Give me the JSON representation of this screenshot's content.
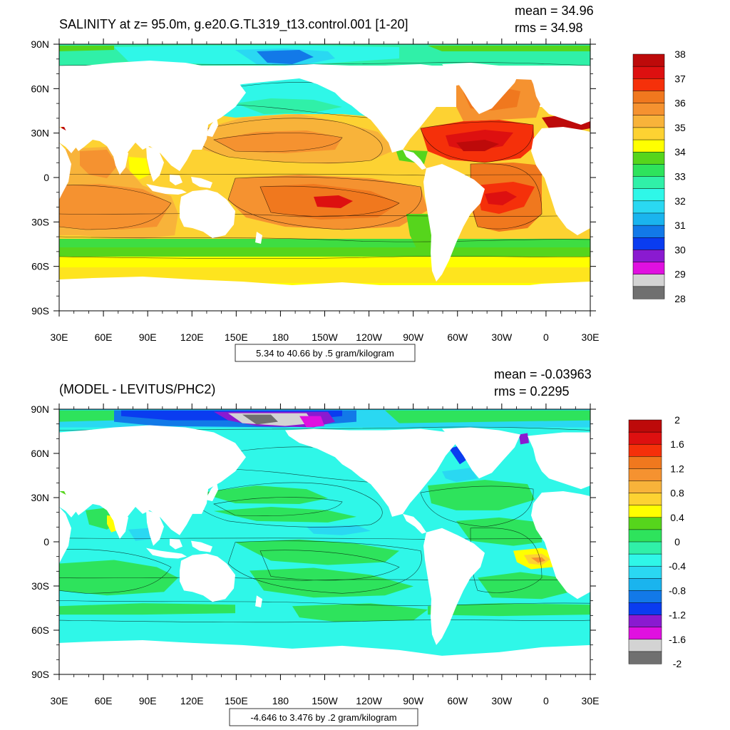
{
  "panels": [
    {
      "title": "SALINITY at z=  95.0m, g.e20.G.TL319_t13.control.001 [1-20]",
      "mean_text": "mean = 34.96",
      "rms_text": "rms = 34.98",
      "lat_labels": [
        "90N",
        "60N",
        "30N",
        "0",
        "30S",
        "60S",
        "90S"
      ],
      "lon_labels": [
        "30E",
        "60E",
        "90E",
        "120E",
        "150E",
        "180",
        "150W",
        "120W",
        "90W",
        "60W",
        "30W",
        "0",
        "30E"
      ],
      "contour_info": "5.34 to 40.66 by .5 gram/kilogram",
      "colorbar_labels": [
        "38",
        "37",
        "36",
        "35",
        "34",
        "33",
        "32",
        "31",
        "30",
        "29",
        "28"
      ],
      "colorbar_colors": [
        "#bd0a0a",
        "#dd1010",
        "#f5300a",
        "#f0781e",
        "#f59230",
        "#f8b33a",
        "#fdd232",
        "#ffff00",
        "#56d51c",
        "#2ee35c",
        "#30f0a8",
        "#2ff7e8",
        "#2ad8f2",
        "#1ab4ee",
        "#1279e8",
        "#0a3cf0",
        "#8a1ad0",
        "#e010e0",
        "#d3d3d3",
        "#707070"
      ]
    },
    {
      "title": "(MODEL - LEVITUS/PHC2)",
      "mean_text": "mean = -0.03963",
      "rms_text": "rms = 0.2295",
      "lat_labels": [
        "90N",
        "60N",
        "30N",
        "0",
        "30S",
        "60S",
        "90S"
      ],
      "lon_labels": [
        "30E",
        "60E",
        "90E",
        "120E",
        "150E",
        "180",
        "150W",
        "120W",
        "90W",
        "60W",
        "30W",
        "0",
        "30E"
      ],
      "contour_info": "-4.646 to 3.476 by .2 gram/kilogram",
      "colorbar_labels": [
        "2",
        "1.6",
        "1.2",
        "0.8",
        "0.4",
        "0",
        "-0.4",
        "-0.8",
        "-1.2",
        "-1.6",
        "-2"
      ],
      "colorbar_colors": [
        "#bd0a0a",
        "#dd1010",
        "#f5300a",
        "#f0781e",
        "#f59230",
        "#f8b33a",
        "#fdd232",
        "#ffff00",
        "#56d51c",
        "#2ee35c",
        "#30f0a8",
        "#2ff7e8",
        "#2ad8f2",
        "#1ab4ee",
        "#1279e8",
        "#0a3cf0",
        "#8a1ad0",
        "#e010e0",
        "#d3d3d3",
        "#707070"
      ]
    }
  ]
}
